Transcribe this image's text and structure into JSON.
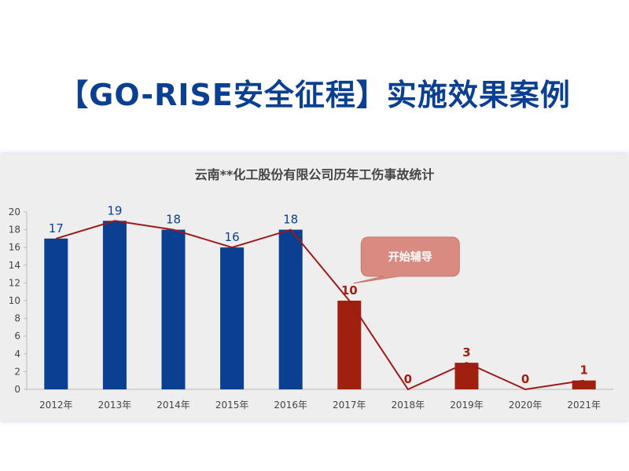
{
  "page": {
    "headline": "【GO-RISE安全征程】实施效果案例"
  },
  "chart_data": {
    "type": "bar",
    "title": "云南**化工股份有限公司历年工伤事故统计",
    "categories": [
      "2012年",
      "2013年",
      "2014年",
      "2015年",
      "2016年",
      "2017年",
      "2018年",
      "2019年",
      "2020年",
      "2021年"
    ],
    "values": [
      17,
      19,
      18,
      16,
      18,
      10,
      0,
      3,
      0,
      1
    ],
    "overlay_line": true,
    "ylim": [
      0,
      20
    ],
    "yticks": [
      0,
      2,
      4,
      6,
      8,
      10,
      12,
      14,
      16,
      18,
      20
    ],
    "grid": false,
    "annotation": {
      "text": "开始辅导",
      "category": "2017年"
    },
    "colors": {
      "before": "#0b3f91",
      "after": "#a02010",
      "line": "#9e1a1a",
      "callout": "#d98b82",
      "label_before": "#0b3f91",
      "label_after": "#a02010"
    }
  }
}
